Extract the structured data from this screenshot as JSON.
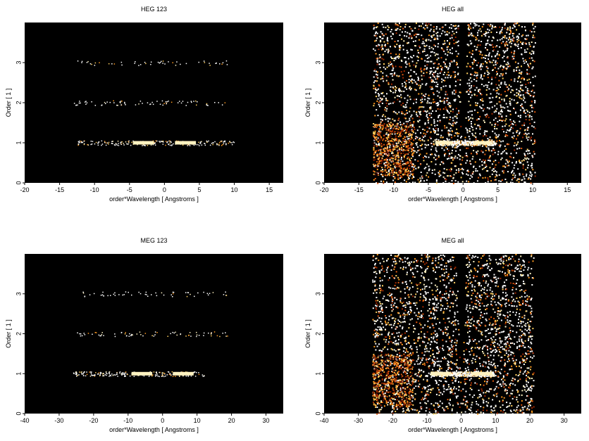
{
  "panels": [
    {
      "type": "heatmap",
      "title": "HEG 123",
      "xlabel": "order*Wavelength [ Angstroms ]",
      "ylabel": "Order [ 1 ]",
      "xlim": [
        -20,
        17
      ],
      "ylim": [
        0,
        4
      ],
      "xticks": [
        -20,
        -15,
        -10,
        -5,
        0,
        5,
        10,
        15
      ],
      "yticks": [
        0,
        1,
        2,
        3
      ],
      "background": "#000000",
      "bands": [
        {
          "order": 1,
          "x": [
            -12.5,
            10
          ],
          "density": 0.35,
          "bright": [
            [
              -4.5,
              -1.5
            ],
            [
              1.5,
              4.5
            ]
          ]
        },
        {
          "order": 2,
          "x": [
            -13,
            9.5
          ],
          "density": 0.12,
          "bright": []
        },
        {
          "order": 3,
          "x": [
            -12.5,
            9.5
          ],
          "density": 0.08,
          "bright": []
        }
      ],
      "wedge": false
    },
    {
      "type": "heatmap",
      "title": "HEG all",
      "xlabel": "order*Wavelength [ Angstroms ]",
      "ylabel": "Order [ 1 ]",
      "xlim": [
        -20,
        17
      ],
      "ylim": [
        0,
        4
      ],
      "xticks": [
        -20,
        -15,
        -10,
        -5,
        0,
        5,
        10,
        15
      ],
      "yticks": [
        0,
        1,
        2,
        3
      ],
      "background": "#000000",
      "bands": [
        {
          "order": 1,
          "x": [
            -4,
            4.5
          ],
          "density": 0.9,
          "bright": [
            [
              -4,
              -1.5
            ],
            [
              1.5,
              4
            ]
          ]
        }
      ],
      "wedge": true,
      "wedge_extent": [
        -13,
        10.3
      ]
    },
    {
      "type": "heatmap",
      "title": "MEG 123",
      "xlabel": "order*Wavelength [ Angstroms ]",
      "ylabel": "Order [ 1 ]",
      "xlim": [
        -40,
        35
      ],
      "ylim": [
        0,
        4
      ],
      "xticks": [
        -40,
        -30,
        -20,
        -10,
        0,
        10,
        20,
        30
      ],
      "yticks": [
        0,
        1,
        2,
        3
      ],
      "background": "#000000",
      "bands": [
        {
          "order": 1,
          "x": [
            -26,
            12
          ],
          "density": 0.35,
          "bright": [
            [
              -9,
              -3
            ],
            [
              3,
              9
            ]
          ]
        },
        {
          "order": 2,
          "x": [
            -25,
            19
          ],
          "density": 0.12,
          "bright": []
        },
        {
          "order": 3,
          "x": [
            -25,
            19
          ],
          "density": 0.09,
          "bright": []
        }
      ],
      "wedge": false
    },
    {
      "type": "heatmap",
      "title": "MEG all",
      "xlabel": "order*Wavelength [ Angstroms ]",
      "ylabel": "Order [ 1 ]",
      "xlim": [
        -40,
        35
      ],
      "ylim": [
        0,
        4
      ],
      "xticks": [
        -40,
        -30,
        -20,
        -10,
        0,
        10,
        20,
        30
      ],
      "yticks": [
        0,
        1,
        2,
        3
      ],
      "background": "#000000",
      "bands": [
        {
          "order": 1,
          "x": [
            -9,
            9.5
          ],
          "density": 0.9,
          "bright": [
            [
              -9,
              -3
            ],
            [
              3,
              9
            ]
          ]
        }
      ],
      "wedge": true,
      "wedge_extent": [
        -26,
        21
      ]
    }
  ],
  "colors": {
    "plot_background": "#000000",
    "points": [
      "#ffffff",
      "#fff2c0",
      "#ffd060",
      "#ff9a20",
      "#e05a10",
      "#a02800",
      "#601000"
    ]
  }
}
